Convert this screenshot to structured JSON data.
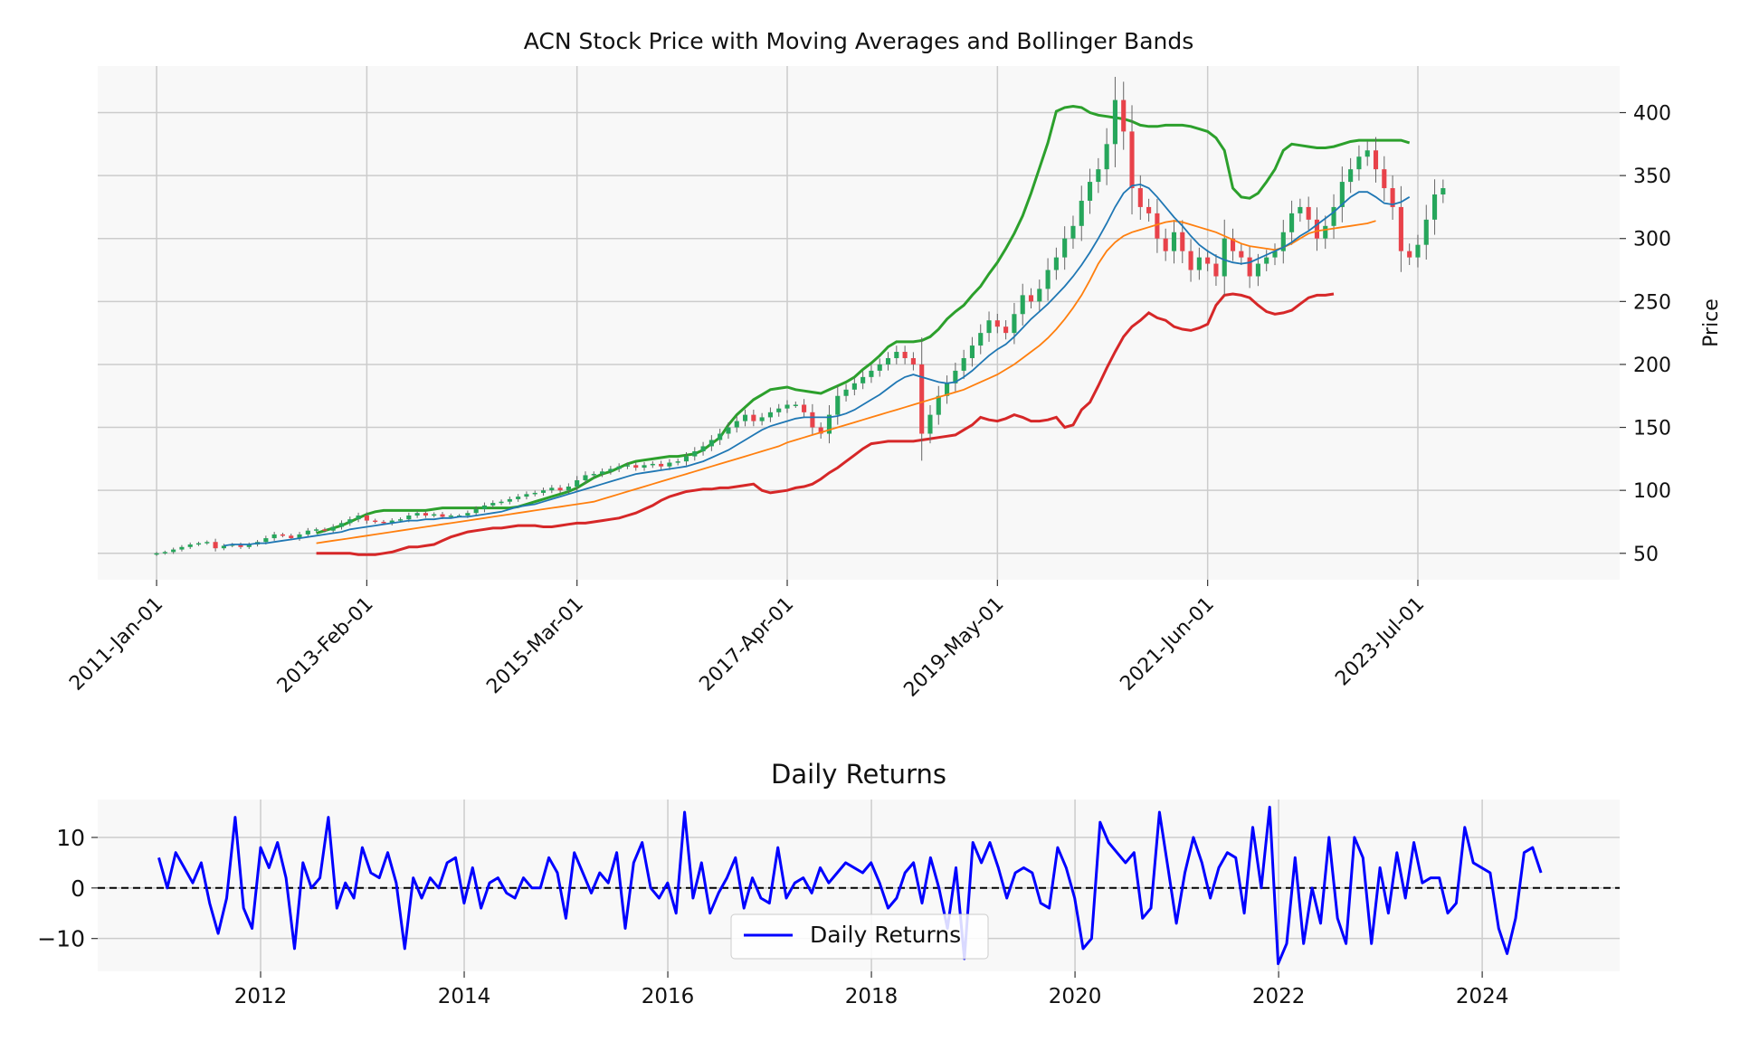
{
  "chart_data": [
    {
      "type": "candlestick",
      "title": "ACN Stock Price with Moving Averages and Bollinger Bands",
      "ylabel": "Price",
      "ylim": [
        29,
        437
      ],
      "yticks": [
        50,
        100,
        150,
        200,
        250,
        300,
        350,
        400
      ],
      "xlim": [
        -7,
        174
      ],
      "xticks": [
        {
          "index": 0,
          "label": "2011-Jan-01"
        },
        {
          "index": 25,
          "label": "2013-Feb-01"
        },
        {
          "index": 50,
          "label": "2015-Mar-01"
        },
        {
          "index": 75,
          "label": "2017-Apr-01"
        },
        {
          "index": 100,
          "label": "2019-May-01"
        },
        {
          "index": 125,
          "label": "2021-Jun-01"
        },
        {
          "index": 150,
          "label": "2023-Jul-01"
        }
      ],
      "grid": true,
      "frequency": "monthly",
      "start_date": "2011-01",
      "colors": {
        "up": "#26a65b",
        "down": "#e8424a",
        "ma_short": "#1f77b4",
        "ma_long": "#ff7f0e",
        "bb_upper": "#2ca02c",
        "bb_lower": "#d62728",
        "background": "#f8f8f8"
      },
      "series": [
        {
          "name": "Close",
          "values": [
            50,
            51,
            53,
            55,
            57,
            58,
            59,
            54,
            56,
            57,
            55,
            57,
            59,
            62,
            65,
            64,
            62,
            65,
            68,
            69,
            68,
            71,
            74,
            77,
            80,
            76,
            75,
            74,
            76,
            77,
            80,
            82,
            80,
            81,
            79,
            80,
            80,
            82,
            85,
            88,
            90,
            91,
            93,
            95,
            97,
            98,
            100,
            102,
            100,
            103,
            108,
            112,
            113,
            115,
            117,
            119,
            120,
            118,
            120,
            121,
            119,
            122,
            123,
            127,
            131,
            135,
            140,
            145,
            150,
            155,
            160,
            155,
            158,
            162,
            165,
            168,
            168,
            162,
            150,
            145,
            160,
            175,
            180,
            185,
            190,
            195,
            200,
            205,
            210,
            205,
            200,
            145,
            160,
            175,
            185,
            195,
            205,
            215,
            225,
            235,
            230,
            225,
            240,
            255,
            250,
            260,
            275,
            285,
            300,
            310,
            330,
            345,
            355,
            375,
            410,
            385,
            340,
            325,
            320,
            300,
            290,
            305,
            290,
            275,
            285,
            280,
            270,
            300,
            290,
            285,
            270,
            280,
            285,
            290,
            305,
            320,
            325,
            315,
            300,
            310,
            325,
            345,
            355,
            365,
            370,
            355,
            340,
            325,
            290,
            285,
            295,
            315,
            335,
            340
          ]
        },
        {
          "name": "ma_short",
          "values": [
            null,
            null,
            null,
            null,
            null,
            null,
            null,
            null,
            56,
            57,
            57,
            57,
            58,
            58,
            59,
            60,
            61,
            62,
            63,
            64,
            65,
            66,
            67,
            69,
            70,
            71,
            72,
            73,
            74,
            75,
            76,
            76,
            77,
            77,
            78,
            78,
            79,
            79,
            80,
            81,
            82,
            83,
            85,
            87,
            88,
            89,
            91,
            93,
            95,
            97,
            99,
            101,
            103,
            105,
            107,
            109,
            111,
            113,
            114,
            115,
            116,
            117,
            118,
            119,
            121,
            123,
            126,
            129,
            132,
            136,
            140,
            144,
            148,
            151,
            153,
            155,
            157,
            158,
            158,
            158,
            158,
            159,
            161,
            164,
            168,
            172,
            176,
            181,
            186,
            190,
            192,
            190,
            188,
            186,
            185,
            186,
            190,
            195,
            201,
            207,
            212,
            216,
            222,
            229,
            236,
            242,
            248,
            255,
            262,
            270,
            279,
            289,
            300,
            312,
            325,
            336,
            342,
            343,
            340,
            333,
            325,
            317,
            310,
            302,
            295,
            290,
            286,
            283,
            281,
            280,
            281,
            284,
            287,
            290,
            293,
            297,
            302,
            306,
            311,
            316,
            321,
            327,
            333,
            337,
            337,
            333,
            328,
            327,
            329,
            333
          ]
        },
        {
          "name": "ma_long",
          "values": [
            null,
            null,
            null,
            null,
            null,
            null,
            null,
            null,
            null,
            null,
            null,
            null,
            null,
            null,
            null,
            null,
            null,
            null,
            null,
            58,
            59,
            60,
            61,
            62,
            63,
            64,
            65,
            66,
            67,
            68,
            69,
            70,
            71,
            72,
            73,
            74,
            75,
            76,
            77,
            78,
            79,
            80,
            81,
            82,
            83,
            84,
            85,
            86,
            87,
            88,
            89,
            90,
            91,
            93,
            95,
            97,
            99,
            101,
            103,
            105,
            107,
            109,
            111,
            113,
            115,
            117,
            119,
            121,
            123,
            125,
            127,
            129,
            131,
            133,
            135,
            138,
            140,
            142,
            144,
            146,
            148,
            150,
            152,
            154,
            156,
            158,
            160,
            162,
            164,
            166,
            168,
            170,
            172,
            174,
            176,
            178,
            180,
            183,
            186,
            189,
            192,
            196,
            200,
            205,
            210,
            215,
            221,
            228,
            236,
            245,
            255,
            267,
            280,
            290,
            297,
            302,
            305,
            307,
            309,
            311,
            313,
            314,
            313,
            311,
            309,
            307,
            305,
            302,
            299,
            296,
            294,
            293,
            292,
            291,
            293,
            296,
            300,
            304,
            306,
            307,
            308,
            309,
            310,
            311,
            312,
            314
          ]
        },
        {
          "name": "bb_upper",
          "values": [
            null,
            null,
            null,
            null,
            null,
            null,
            null,
            null,
            null,
            null,
            null,
            null,
            null,
            null,
            null,
            null,
            null,
            null,
            null,
            66,
            68,
            70,
            72,
            75,
            78,
            81,
            83,
            84,
            84,
            84,
            84,
            84,
            84,
            85,
            86,
            86,
            86,
            86,
            86,
            86,
            86,
            86,
            86,
            87,
            89,
            91,
            93,
            95,
            97,
            99,
            102,
            106,
            110,
            113,
            115,
            118,
            121,
            123,
            124,
            125,
            126,
            127,
            127,
            128,
            129,
            132,
            137,
            142,
            152,
            160,
            166,
            172,
            176,
            180,
            181,
            182,
            180,
            179,
            178,
            177,
            180,
            183,
            186,
            190,
            196,
            201,
            207,
            214,
            218,
            218,
            218,
            219,
            222,
            228,
            236,
            242,
            247,
            255,
            262,
            272,
            281,
            292,
            304,
            318,
            336,
            356,
            376,
            401,
            404,
            405,
            404,
            400,
            398,
            397,
            396,
            395,
            393,
            390,
            389,
            389,
            390,
            390,
            390,
            389,
            387,
            385,
            380,
            370,
            340,
            333,
            332,
            336,
            345,
            355,
            370,
            375,
            374,
            373,
            372,
            372,
            373,
            375,
            377,
            378,
            378,
            378,
            378,
            378,
            378,
            376
          ]
        },
        {
          "name": "bb_lower",
          "values": [
            null,
            null,
            null,
            null,
            null,
            null,
            null,
            null,
            null,
            null,
            null,
            null,
            null,
            null,
            null,
            null,
            null,
            null,
            null,
            50,
            50,
            50,
            50,
            50,
            49,
            49,
            49,
            50,
            51,
            53,
            55,
            55,
            56,
            57,
            60,
            63,
            65,
            67,
            68,
            69,
            70,
            70,
            71,
            72,
            72,
            72,
            71,
            71,
            72,
            73,
            74,
            74,
            75,
            76,
            77,
            78,
            80,
            82,
            85,
            88,
            92,
            95,
            97,
            99,
            100,
            101,
            101,
            102,
            102,
            103,
            104,
            105,
            100,
            98,
            99,
            100,
            102,
            103,
            105,
            109,
            114,
            118,
            123,
            128,
            133,
            137,
            138,
            139,
            139,
            139,
            139,
            140,
            141,
            142,
            143,
            144,
            148,
            152,
            158,
            156,
            155,
            157,
            160,
            158,
            155,
            155,
            156,
            158,
            150,
            152,
            164,
            170,
            183,
            197,
            210,
            222,
            230,
            235,
            241,
            237,
            235,
            230,
            228,
            227,
            229,
            232,
            247,
            255,
            256,
            255,
            253,
            247,
            242,
            240,
            241,
            243,
            248,
            253,
            255,
            255,
            256
          ]
        }
      ]
    },
    {
      "type": "line",
      "title": "Daily Returns",
      "xlabel": "",
      "ylabel": "",
      "xlim": [
        2010.4,
        2025.35
      ],
      "ylim": [
        -16.5,
        17.5
      ],
      "yticks": [
        {
          "value": -10,
          "label": "−10"
        },
        {
          "value": 0,
          "label": "0"
        },
        {
          "value": 10,
          "label": "10"
        }
      ],
      "xticks": [
        2012,
        2014,
        2016,
        2018,
        2020,
        2022,
        2024
      ],
      "grid": true,
      "zero_line": {
        "value": 0,
        "style": "dashed",
        "color": "#000000"
      },
      "legend": {
        "position": "bottom-center",
        "entries": [
          "Daily Returns"
        ]
      },
      "x_start": 2011.0,
      "x_step": 0.0833,
      "series": [
        {
          "name": "Daily Returns",
          "color": "#0000ff",
          "values": [
            6,
            0,
            7,
            4,
            1,
            5,
            -3,
            -9,
            -2,
            14,
            -4,
            -8,
            8,
            4,
            9,
            2,
            -12,
            5,
            0,
            2,
            14,
            -4,
            1,
            -2,
            8,
            3,
            2,
            7,
            1,
            -12,
            2,
            -2,
            2,
            0,
            5,
            6,
            -3,
            4,
            -4,
            1,
            2,
            -1,
            -2,
            2,
            0,
            0,
            6,
            3,
            -6,
            7,
            3,
            -1,
            3,
            1,
            7,
            -8,
            5,
            9,
            0,
            -2,
            1,
            -5,
            15,
            -2,
            5,
            -5,
            -1,
            2,
            6,
            -4,
            2,
            -2,
            -3,
            8,
            -2,
            1,
            2,
            -1,
            4,
            1,
            3,
            5,
            4,
            3,
            5,
            1,
            -4,
            -2,
            3,
            5,
            -3,
            6,
            0,
            -8,
            4,
            -14,
            9,
            5,
            9,
            4,
            -2,
            3,
            4,
            3,
            -3,
            -4,
            8,
            4,
            -2,
            -12,
            -10,
            13,
            9,
            7,
            5,
            7,
            -6,
            -4,
            15,
            4,
            -7,
            3,
            10,
            5,
            -2,
            4,
            7,
            6,
            -5,
            12,
            0,
            16,
            -15,
            -11,
            6,
            -11,
            0,
            -7,
            10,
            -6,
            -11,
            10,
            6,
            -11,
            4,
            -5,
            7,
            -2,
            9,
            1,
            2,
            2,
            -5,
            -3,
            12,
            5,
            4,
            3,
            -8,
            -13,
            -6,
            7,
            8,
            3
          ]
        }
      ]
    }
  ]
}
